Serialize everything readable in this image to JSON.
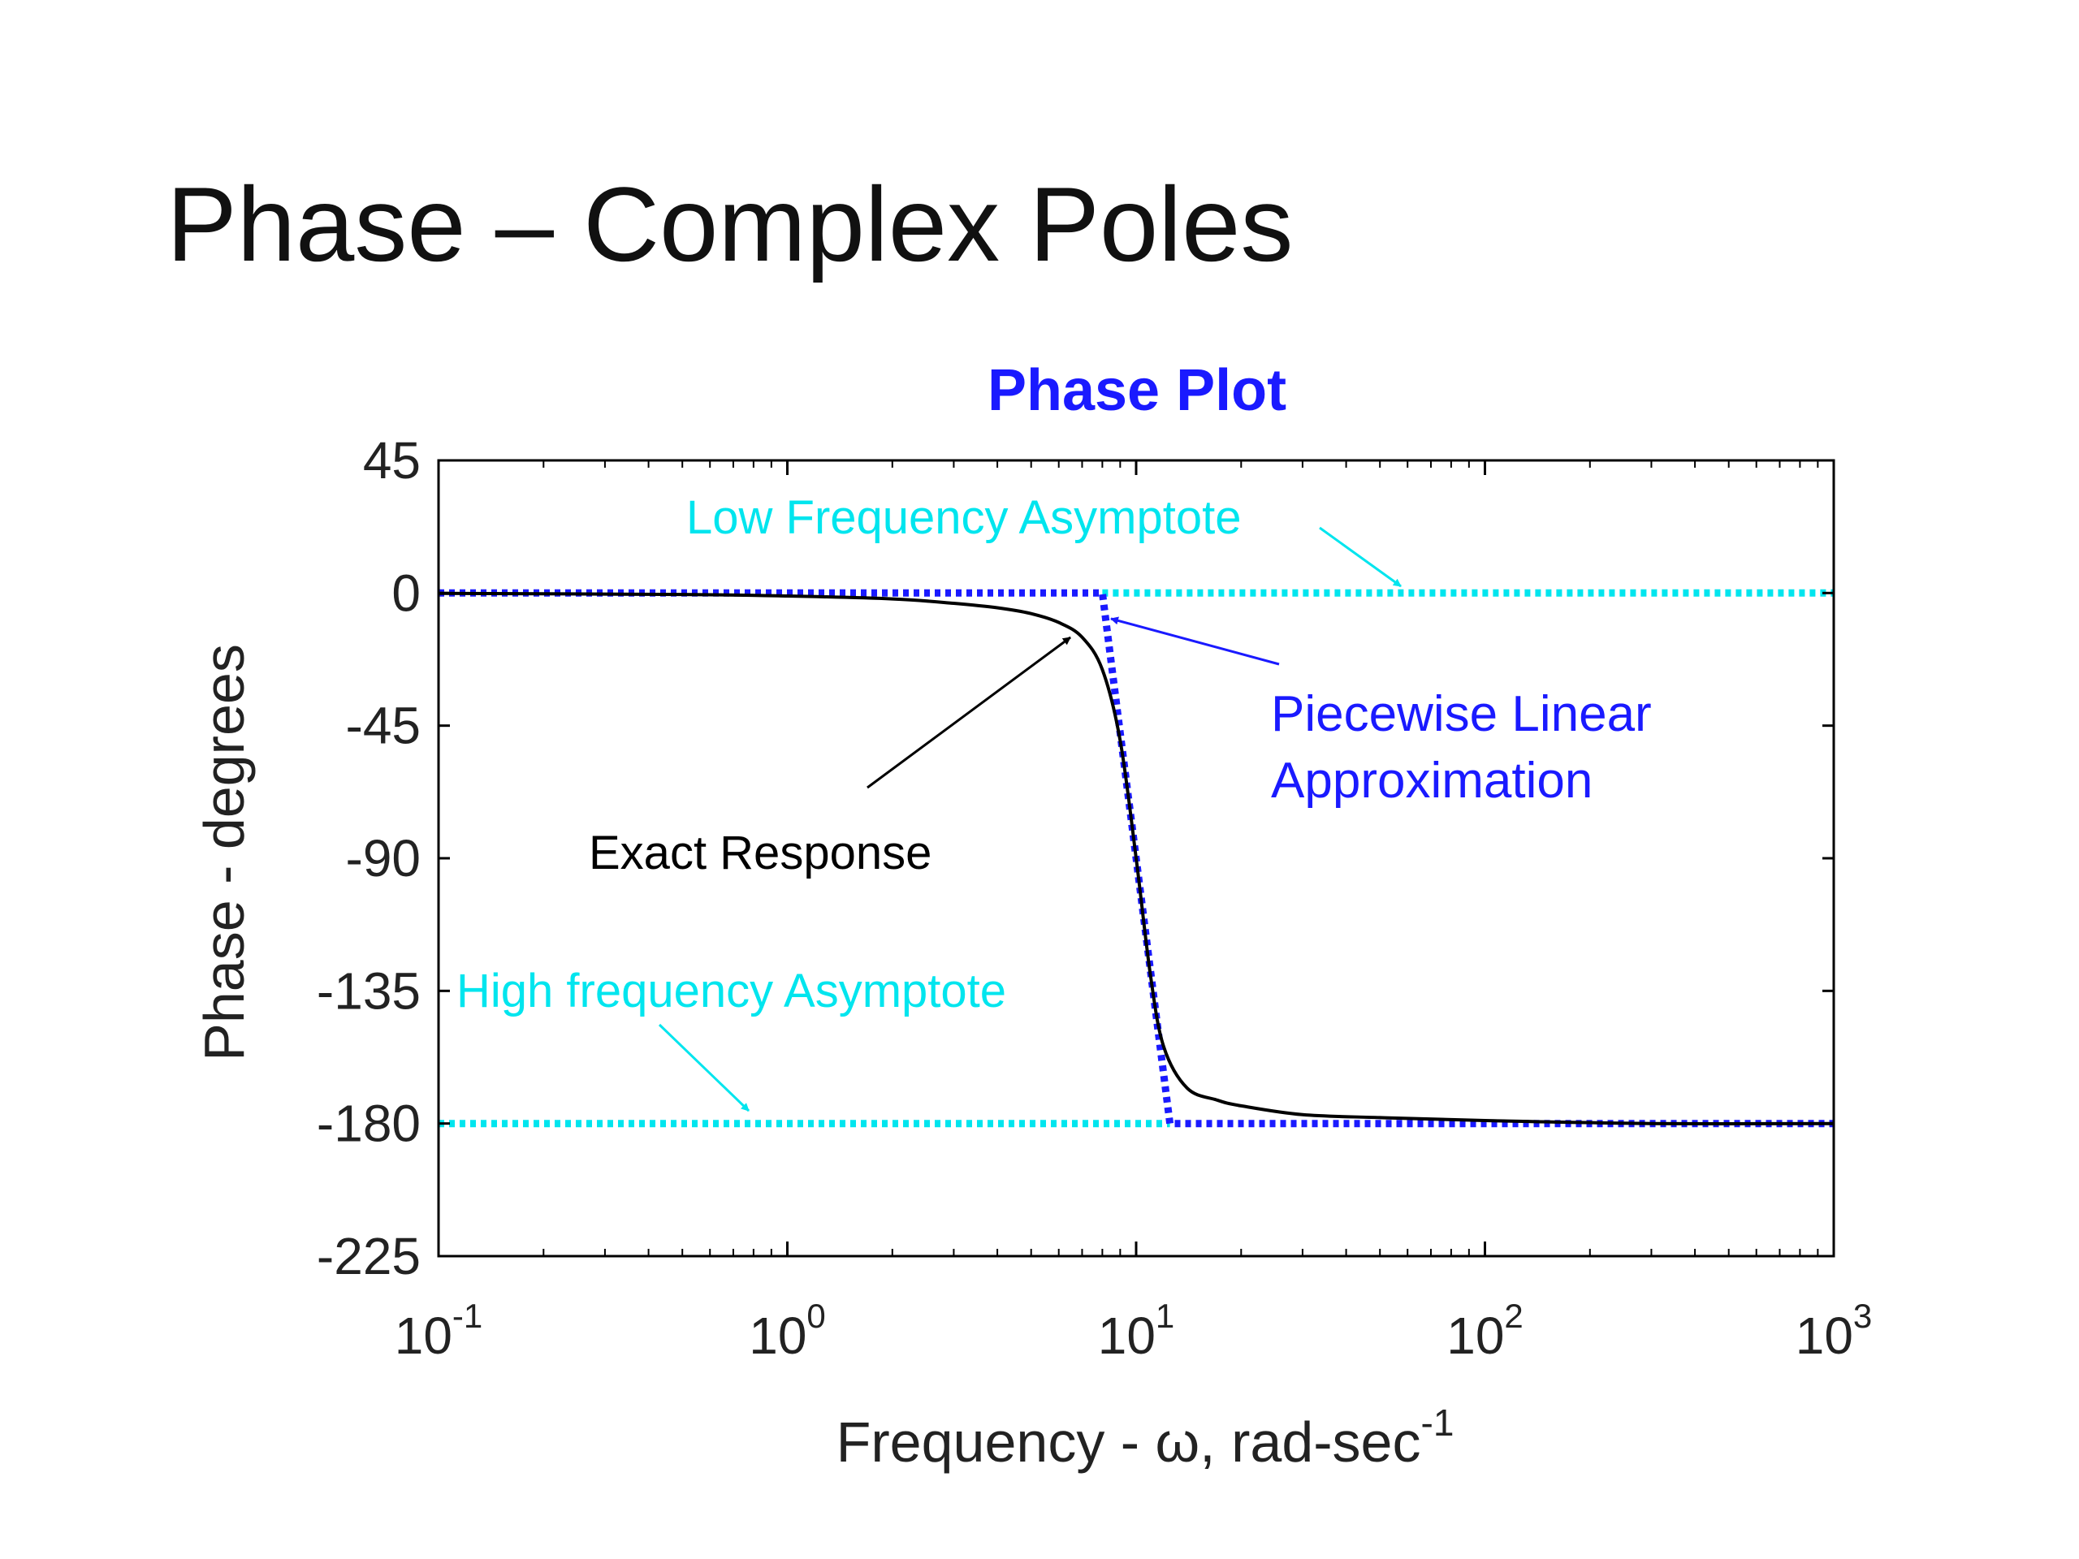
{
  "slide": {
    "title": "Phase – Complex Poles"
  },
  "chart_data": {
    "type": "line",
    "title": "Phase Plot",
    "xlabel": "Frequency - ω, rad-sec",
    "xlabel_sup": "-1",
    "ylabel": "Phase - degrees",
    "xscale": "log",
    "xlim": [
      0.1,
      1000
    ],
    "ylim": [
      -225,
      45
    ],
    "x_ticks": [
      {
        "base": "10",
        "exp": "-1",
        "value": 0.1
      },
      {
        "base": "10",
        "exp": "0",
        "value": 1
      },
      {
        "base": "10",
        "exp": "1",
        "value": 10
      },
      {
        "base": "10",
        "exp": "2",
        "value": 100
      },
      {
        "base": "10",
        "exp": "3",
        "value": 1000
      }
    ],
    "y_ticks": [
      "45",
      "0",
      "-45",
      "-90",
      "-135",
      "-180",
      "-225"
    ],
    "grid": false,
    "colors": {
      "title": "#1a1aff",
      "exact": "#000000",
      "piecewise": "#1a1aff",
      "asymptote": "#00e5ee"
    },
    "series": [
      {
        "key": "exact",
        "style": "solid",
        "x": [
          0.1,
          0.5,
          1,
          2,
          3,
          4,
          5,
          6,
          7,
          8,
          9,
          10,
          11,
          12,
          14,
          17,
          20,
          30,
          50,
          100,
          300,
          1000
        ],
        "y": [
          -0.1,
          -0.5,
          -1,
          -2,
          -3.5,
          -5,
          -7,
          -10,
          -15,
          -26,
          -50,
          -90,
          -130,
          -154,
          -168,
          -172,
          -174,
          -177,
          -178,
          -179,
          -180,
          -180
        ]
      },
      {
        "key": "piecewise",
        "style": "dotted",
        "x": [
          0.1,
          8,
          12.5,
          1000
        ],
        "y": [
          0,
          0,
          -180,
          -180
        ]
      },
      {
        "key": "low_asymptote",
        "style": "dotted",
        "x": [
          8,
          1000
        ],
        "y": [
          0,
          0
        ]
      },
      {
        "key": "high_asymptote",
        "style": "dotted",
        "x": [
          0.1,
          12.5
        ],
        "y": [
          -180,
          -180
        ]
      }
    ],
    "annotations": {
      "low_asymptote": "Low Frequency Asymptote",
      "high_asymptote": "High frequency Asymptote",
      "piecewise_line1": "Piecewise Linear",
      "piecewise_line2": "Approximation",
      "exact": "Exact Response"
    }
  }
}
